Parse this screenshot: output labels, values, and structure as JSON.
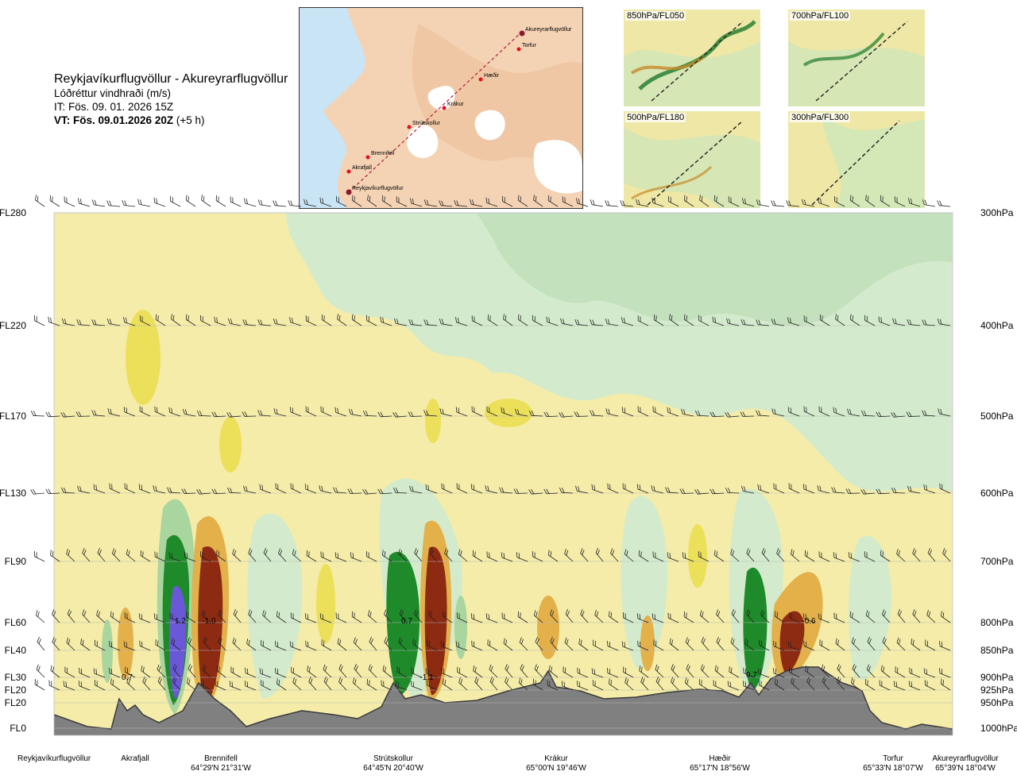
{
  "header": {
    "route": "Reykjavíkurflugvöllur - Akureyrarflugvöllur",
    "parameter": "Lóðréttur vindhraði (m/s)",
    "issue_time": "IT: Fös. 09. 01. 2026 15Z",
    "valid_time_label": "VT: Fös. 09.01.2026 20Z",
    "valid_offset": "(+5 h)"
  },
  "route_map": {
    "points": [
      {
        "name": "Akureyrarflugvöllur"
      },
      {
        "name": "Torfur"
      },
      {
        "name": "Hæðir"
      },
      {
        "name": "Krákur"
      },
      {
        "name": "Strútskollur"
      },
      {
        "name": "Brennifell"
      },
      {
        "name": "Akrafjall"
      },
      {
        "name": "Reykjavíkurflugvöllur"
      }
    ]
  },
  "minimaps": [
    {
      "label": "850hPa/FL050"
    },
    {
      "label": "700hPa/FL100"
    },
    {
      "label": "500hPa/FL180"
    },
    {
      "label": "300hPa/FL300"
    }
  ],
  "chart_data": {
    "type": "heatmap",
    "title": "Lóðréttur vindhraði (m/s)",
    "y_levels": [
      {
        "fl": "FL280",
        "hpa": "300hPa"
      },
      {
        "fl": "FL220",
        "hpa": "400hPa"
      },
      {
        "fl": "FL170",
        "hpa": "500hPa"
      },
      {
        "fl": "FL130",
        "hpa": "600hPa"
      },
      {
        "fl": "FL90",
        "hpa": "700hPa"
      },
      {
        "fl": "FL60",
        "hpa": "800hPa"
      },
      {
        "fl": "FL40",
        "hpa": "850hPa"
      },
      {
        "fl": "FL30",
        "hpa": "900hPa"
      },
      {
        "fl": "FL20",
        "hpa": "925hPa"
      },
      {
        "fl": "FL20",
        "hpa": "950hPa"
      },
      {
        "fl": "FL0",
        "hpa": "1000hPa"
      }
    ],
    "x_locations": [
      {
        "name": "Reykjavíkurflugvöllur",
        "coord": ""
      },
      {
        "name": "Akrafjall",
        "coord": ""
      },
      {
        "name": "Brennifell",
        "coord": "64°29'N 21°31'W"
      },
      {
        "name": "Strútskollur",
        "coord": "64°45'N 20°40'W"
      },
      {
        "name": "Krákur",
        "coord": "65°00'N 19°46'W"
      },
      {
        "name": "Hæðir",
        "coord": "65°17'N 18°56'W"
      },
      {
        "name": "Torfur",
        "coord": "65°33'N 18°07'W"
      },
      {
        "name": "Akureyrarflugvöllur",
        "coord": "65°39'N 18°04'W"
      }
    ],
    "annotations": [
      "0.7",
      "1.2",
      "-1.0",
      "0.7",
      "-1.1",
      "0.7",
      "-0.6"
    ]
  }
}
